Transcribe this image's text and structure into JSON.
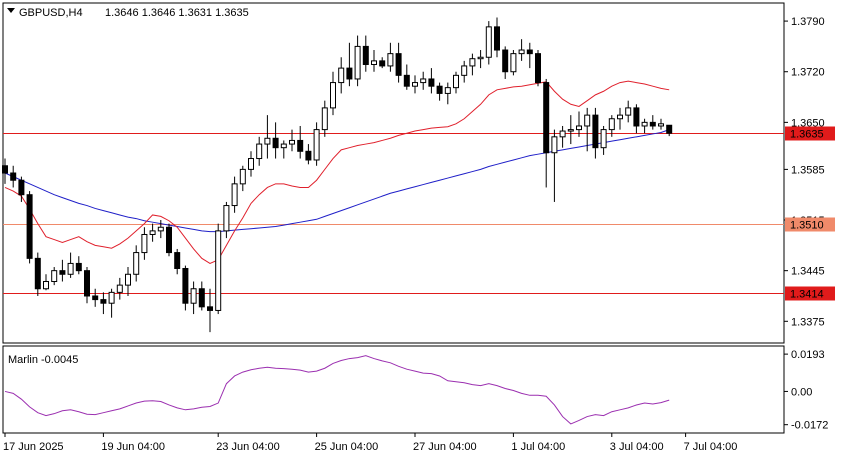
{
  "header": {
    "symbol": "GBPUSD,H4",
    "ohlc": "1.3646 1.3646 1.3631 1.3635"
  },
  "indicator": {
    "label": "Marlin -0.0045"
  },
  "colors": {
    "candle": "#000000",
    "ma_blue": "#1f1fc8",
    "envelope_red": "#e0202c",
    "hline_red": "#e01b1b",
    "hline_salmon": "#f08a6a",
    "oscillator": "#9b2fb0",
    "grid": "#000000"
  },
  "chart_data": [
    {
      "type": "candlestick",
      "title": "GBPUSD,H4",
      "y_ticks": [
        "1.3790",
        "1.3720",
        "1.3650",
        "1.3585",
        "1.3515",
        "1.3445",
        "1.3375"
      ],
      "ylim": [
        1.3345,
        1.3815
      ],
      "x_ticks": [
        "17 Jun 2025",
        "19 Jun 04:00",
        "23 Jun 04:00",
        "25 Jun 04:00",
        "27 Jun 04:00",
        "1 Jul 04:00",
        "3 Jul 04:00",
        "7 Jul 04:00"
      ],
      "horizontal_levels": [
        {
          "value": 1.3635,
          "label": "1.3635",
          "color": "#e01b1b",
          "tag_bg": "#e01b1b"
        },
        {
          "value": 1.351,
          "label": "1.3510",
          "color": "#f08a6a",
          "tag_bg": "#f08a6a"
        },
        {
          "value": 1.3414,
          "label": "1.3414",
          "color": "#e01b1b",
          "tag_bg": "#e01b1b"
        }
      ],
      "candles": [
        [
          1.359,
          1.36,
          1.3565,
          1.358
        ],
        [
          1.358,
          1.359,
          1.356,
          1.357
        ],
        [
          1.357,
          1.3575,
          1.354,
          1.355
        ],
        [
          1.355,
          1.3555,
          1.3455,
          1.3462
        ],
        [
          1.3462,
          1.347,
          1.341,
          1.342
        ],
        [
          1.342,
          1.344,
          1.3418,
          1.343
        ],
        [
          1.343,
          1.345,
          1.3425,
          1.3445
        ],
        [
          1.3445,
          1.346,
          1.343,
          1.344
        ],
        [
          1.344,
          1.347,
          1.3435,
          1.3455
        ],
        [
          1.3455,
          1.3465,
          1.344,
          1.3445
        ],
        [
          1.3445,
          1.345,
          1.34,
          1.341
        ],
        [
          1.341,
          1.342,
          1.3395,
          1.3405
        ],
        [
          1.3405,
          1.3415,
          1.3385,
          1.34
        ],
        [
          1.34,
          1.342,
          1.338,
          1.3415
        ],
        [
          1.3415,
          1.3435,
          1.3405,
          1.3425
        ],
        [
          1.3425,
          1.345,
          1.341,
          1.344
        ],
        [
          1.344,
          1.348,
          1.343,
          1.347
        ],
        [
          1.347,
          1.3505,
          1.346,
          1.3495
        ],
        [
          1.3495,
          1.351,
          1.3485,
          1.35
        ],
        [
          1.35,
          1.3515,
          1.349,
          1.3505
        ],
        [
          1.3505,
          1.351,
          1.3465,
          1.347
        ],
        [
          1.347,
          1.3475,
          1.344,
          1.3448
        ],
        [
          1.3448,
          1.3452,
          1.339,
          1.34
        ],
        [
          1.34,
          1.343,
          1.3385,
          1.342
        ],
        [
          1.342,
          1.343,
          1.339,
          1.3395
        ],
        [
          1.3395,
          1.342,
          1.336,
          1.339
        ],
        [
          1.339,
          1.351,
          1.3385,
          1.35
        ],
        [
          1.35,
          1.354,
          1.349,
          1.3535
        ],
        [
          1.3535,
          1.3575,
          1.3525,
          1.3565
        ],
        [
          1.3565,
          1.359,
          1.3555,
          1.3585
        ],
        [
          1.3585,
          1.361,
          1.3575,
          1.36
        ],
        [
          1.36,
          1.363,
          1.359,
          1.362
        ],
        [
          1.362,
          1.366,
          1.36,
          1.3628
        ],
        [
          1.3628,
          1.365,
          1.36,
          1.3615
        ],
        [
          1.3615,
          1.3625,
          1.36,
          1.362
        ],
        [
          1.362,
          1.364,
          1.361,
          1.3625
        ],
        [
          1.3625,
          1.3645,
          1.36,
          1.361
        ],
        [
          1.361,
          1.362,
          1.3592,
          1.3598
        ],
        [
          1.3598,
          1.365,
          1.359,
          1.364
        ],
        [
          1.364,
          1.368,
          1.363,
          1.367
        ],
        [
          1.367,
          1.372,
          1.366,
          1.3705
        ],
        [
          1.3705,
          1.374,
          1.369,
          1.3725
        ],
        [
          1.3725,
          1.376,
          1.37,
          1.371
        ],
        [
          1.371,
          1.377,
          1.37,
          1.3755
        ],
        [
          1.3755,
          1.377,
          1.372,
          1.373
        ],
        [
          1.373,
          1.375,
          1.372,
          1.3735
        ],
        [
          1.3735,
          1.374,
          1.3725,
          1.3728
        ],
        [
          1.3728,
          1.376,
          1.372,
          1.3745
        ],
        [
          1.3745,
          1.376,
          1.3705,
          1.3715
        ],
        [
          1.3715,
          1.373,
          1.3695,
          1.37
        ],
        [
          1.37,
          1.3715,
          1.369,
          1.3705
        ],
        [
          1.3705,
          1.372,
          1.3695,
          1.371
        ],
        [
          1.371,
          1.3725,
          1.369,
          1.37
        ],
        [
          1.37,
          1.3705,
          1.368,
          1.369
        ],
        [
          1.369,
          1.3705,
          1.3675,
          1.3698
        ],
        [
          1.3698,
          1.372,
          1.369,
          1.3715
        ],
        [
          1.3715,
          1.3735,
          1.3705,
          1.3728
        ],
        [
          1.3728,
          1.3745,
          1.3715,
          1.3738
        ],
        [
          1.3738,
          1.375,
          1.3725,
          1.374
        ],
        [
          1.374,
          1.379,
          1.373,
          1.3782
        ],
        [
          1.3782,
          1.3795,
          1.374,
          1.375
        ],
        [
          1.375,
          1.3755,
          1.371,
          1.372
        ],
        [
          1.372,
          1.375,
          1.3715,
          1.3745
        ],
        [
          1.3745,
          1.3765,
          1.3735,
          1.375
        ],
        [
          1.375,
          1.376,
          1.3725,
          1.3745
        ],
        [
          1.3745,
          1.375,
          1.37,
          1.3705
        ],
        [
          1.3705,
          1.371,
          1.356,
          1.3608
        ],
        [
          1.3608,
          1.364,
          1.354,
          1.363
        ],
        [
          1.363,
          1.3645,
          1.3615,
          1.3638
        ],
        [
          1.3638,
          1.366,
          1.362,
          1.364
        ],
        [
          1.364,
          1.3665,
          1.363,
          1.3645
        ],
        [
          1.3645,
          1.367,
          1.361,
          1.366
        ],
        [
          1.366,
          1.367,
          1.36,
          1.3615
        ],
        [
          1.3615,
          1.3645,
          1.3605,
          1.364
        ],
        [
          1.364,
          1.366,
          1.363,
          1.3655
        ],
        [
          1.3655,
          1.367,
          1.364,
          1.366
        ],
        [
          1.366,
          1.368,
          1.365,
          1.367
        ],
        [
          1.367,
          1.3675,
          1.3635,
          1.3645
        ],
        [
          1.3645,
          1.3655,
          1.3635,
          1.365
        ],
        [
          1.365,
          1.366,
          1.364,
          1.3645
        ],
        [
          1.3645,
          1.3655,
          1.364,
          1.3648
        ],
        [
          1.3646,
          1.3646,
          1.3631,
          1.3635
        ]
      ],
      "series": [
        {
          "color": "#1f1fc8",
          "values": [
            1.358,
            1.3575,
            1.357,
            1.3565,
            1.356,
            1.3555,
            1.355,
            1.3546,
            1.3542,
            1.3538,
            1.3535,
            1.3531,
            1.3528,
            1.3525,
            1.3522,
            1.3519,
            1.3517,
            1.3514,
            1.3512,
            1.351,
            1.3508,
            1.3506,
            1.3504,
            1.3502,
            1.35,
            1.3499,
            1.3499,
            1.35,
            1.3501,
            1.3502,
            1.3503,
            1.3504,
            1.3505,
            1.3506,
            1.3508,
            1.351,
            1.3512,
            1.3514,
            1.3516,
            1.352,
            1.3524,
            1.3528,
            1.3532,
            1.3536,
            1.354,
            1.3544,
            1.3548,
            1.3552,
            1.3555,
            1.3558,
            1.3561,
            1.3564,
            1.3567,
            1.357,
            1.3573,
            1.3576,
            1.3579,
            1.3582,
            1.3585,
            1.3589,
            1.3592,
            1.3595,
            1.3598,
            1.3601,
            1.3604,
            1.3606,
            1.3608,
            1.361,
            1.3612,
            1.3614,
            1.3616,
            1.3618,
            1.362,
            1.3622,
            1.3624,
            1.3626,
            1.3628,
            1.363,
            1.3632,
            1.3634,
            1.3636,
            1.364
          ]
        },
        {
          "color": "#e0202c",
          "values": [
            1.356,
            1.3555,
            1.3548,
            1.353,
            1.351,
            1.3492,
            1.3488,
            1.3484,
            1.3488,
            1.3492,
            1.3485,
            1.348,
            1.3478,
            1.3476,
            1.3482,
            1.349,
            1.35,
            1.351,
            1.3522,
            1.352,
            1.3514,
            1.3505,
            1.349,
            1.3475,
            1.3462,
            1.3455,
            1.346,
            1.348,
            1.35,
            1.3518,
            1.3538,
            1.355,
            1.356,
            1.3565,
            1.3565,
            1.3562,
            1.356,
            1.356,
            1.357,
            1.3585,
            1.36,
            1.3612,
            1.3615,
            1.3618,
            1.362,
            1.3622,
            1.3625,
            1.3628,
            1.3632,
            1.3635,
            1.3638,
            1.364,
            1.3642,
            1.3643,
            1.3644,
            1.3648,
            1.3655,
            1.3665,
            1.3675,
            1.3688,
            1.3695,
            1.3697,
            1.3699,
            1.37,
            1.3702,
            1.3704,
            1.3706,
            1.3693,
            1.3682,
            1.3675,
            1.3672,
            1.368,
            1.3688,
            1.3693,
            1.37,
            1.3705,
            1.3707,
            1.3705,
            1.3703,
            1.37,
            1.3697,
            1.3695
          ]
        }
      ]
    },
    {
      "type": "line",
      "title": "Marlin -0.0045",
      "y_ticks": [
        "0.0193",
        "0.00",
        "-0.0172"
      ],
      "ylim": [
        -0.0215,
        0.0235
      ],
      "series": [
        {
          "color": "#9b2fb0",
          "values": [
            0.0,
            -0.001,
            -0.004,
            -0.008,
            -0.011,
            -0.0125,
            -0.0115,
            -0.01,
            -0.0095,
            -0.0105,
            -0.0118,
            -0.012,
            -0.011,
            -0.01,
            -0.009,
            -0.0075,
            -0.006,
            -0.005,
            -0.0048,
            -0.0052,
            -0.007,
            -0.0085,
            -0.0095,
            -0.009,
            -0.0082,
            -0.0078,
            -0.006,
            0.004,
            0.008,
            0.01,
            0.0112,
            0.012,
            0.0125,
            0.012,
            0.0118,
            0.0115,
            0.011,
            0.01,
            0.0105,
            0.012,
            0.0145,
            0.016,
            0.017,
            0.0175,
            0.0185,
            0.017,
            0.0158,
            0.0148,
            0.013,
            0.0115,
            0.0105,
            0.0095,
            0.0092,
            0.008,
            0.0055,
            0.005,
            0.0045,
            0.0035,
            0.003,
            0.004,
            0.003,
            0.0015,
            0.0005,
            -0.001,
            -0.002,
            -0.002,
            -0.0025,
            -0.007,
            -0.013,
            -0.0168,
            -0.015,
            -0.013,
            -0.012,
            -0.0125,
            -0.0105,
            -0.0095,
            -0.0085,
            -0.007,
            -0.006,
            -0.0065,
            -0.0058,
            -0.0045
          ]
        }
      ]
    }
  ]
}
